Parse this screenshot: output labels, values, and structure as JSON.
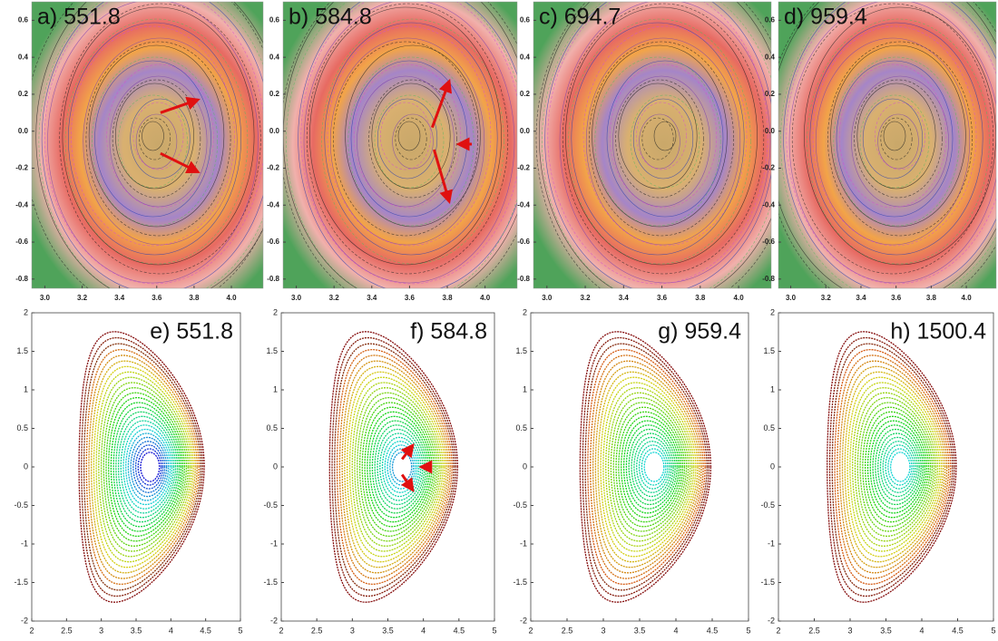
{
  "chart_data": [
    {
      "type": "contour",
      "title": "a) 551.8",
      "xlim": [
        2.93,
        4.17
      ],
      "ylim": [
        -0.85,
        0.7
      ],
      "xticks": [
        {
          "value": 3,
          "label": "3.0"
        },
        3.2,
        3.4,
        3.6,
        3.8,
        {
          "value": 4,
          "label": "4.0"
        }
      ],
      "yticks": [
        0.6,
        0.4,
        0.2,
        {
          "value": 0,
          "label": "0.0"
        },
        -0.2,
        -0.4,
        -0.6,
        -0.8
      ]
    },
    {
      "type": "contour",
      "title": "b) 584.8",
      "xlim": [
        2.93,
        4.17
      ],
      "ylim": [
        -0.85,
        0.7
      ],
      "xticks": [
        {
          "value": 3,
          "label": "3.0"
        },
        3.2,
        3.4,
        3.6,
        3.8,
        {
          "value": 4,
          "label": "4.0"
        }
      ],
      "yticks": [
        0.6,
        0.4,
        0.2,
        {
          "value": 0,
          "label": "0.0"
        },
        -0.2,
        -0.4,
        -0.6,
        -0.8
      ]
    },
    {
      "type": "contour",
      "title": "c) 694.7",
      "xlim": [
        2.93,
        4.17
      ],
      "ylim": [
        -0.85,
        0.7
      ],
      "xticks": [
        {
          "value": 3,
          "label": "3.0"
        },
        3.2,
        3.4,
        3.6,
        3.8,
        {
          "value": 4,
          "label": "4.0"
        }
      ],
      "yticks": [
        0.6,
        0.4,
        0.2,
        {
          "value": 0,
          "label": "0.0"
        },
        -0.2,
        -0.4,
        -0.6,
        -0.8
      ]
    },
    {
      "type": "contour",
      "title": "d) 959.4",
      "xlim": [
        2.93,
        4.17
      ],
      "ylim": [
        -0.85,
        0.7
      ],
      "xticks": [
        {
          "value": 3,
          "label": "3.0"
        },
        3.2,
        3.4,
        3.6,
        3.8,
        {
          "value": 4,
          "label": "4.0"
        }
      ],
      "yticks": [
        0.6,
        0.4,
        0.2,
        {
          "value": 0,
          "label": "0.0"
        },
        -0.2,
        -0.4,
        -0.6,
        -0.8
      ]
    },
    {
      "type": "poincare",
      "title": "e) 551.8",
      "xlim": [
        2,
        5
      ],
      "ylim": [
        -2,
        2
      ],
      "xticks": [
        2,
        2.5,
        3,
        3.5,
        4,
        4.5,
        5
      ],
      "yticks": [
        2,
        1.5,
        1,
        0.5,
        0,
        -0.5,
        -1,
        -1.5,
        -2
      ]
    },
    {
      "type": "poincare",
      "title": "f) 584.8",
      "xlim": [
        2,
        5
      ],
      "ylim": [
        -2,
        2
      ],
      "xticks": [
        2,
        2.5,
        3,
        3.5,
        4,
        4.5,
        5
      ],
      "yticks": [
        2,
        1.5,
        1,
        0.5,
        0,
        -0.5,
        -1,
        -1.5,
        -2
      ]
    },
    {
      "type": "poincare",
      "title": "g) 959.4",
      "xlim": [
        2,
        5
      ],
      "ylim": [
        -2,
        2
      ],
      "xticks": [
        2,
        2.5,
        3,
        3.5,
        4,
        4.5,
        5
      ],
      "yticks": [
        2,
        1.5,
        1,
        0.5,
        0,
        -0.5,
        -1,
        -1.5,
        -2
      ]
    },
    {
      "type": "poincare",
      "title": "h) 1500.4",
      "xlim": [
        2,
        5
      ],
      "ylim": [
        -2,
        2
      ],
      "xticks": [
        2,
        2.5,
        3,
        3.5,
        4,
        4.5,
        5
      ],
      "yticks": [
        2,
        1.5,
        1,
        0.5,
        0,
        -0.5,
        -1,
        -1.5,
        -2
      ]
    }
  ]
}
